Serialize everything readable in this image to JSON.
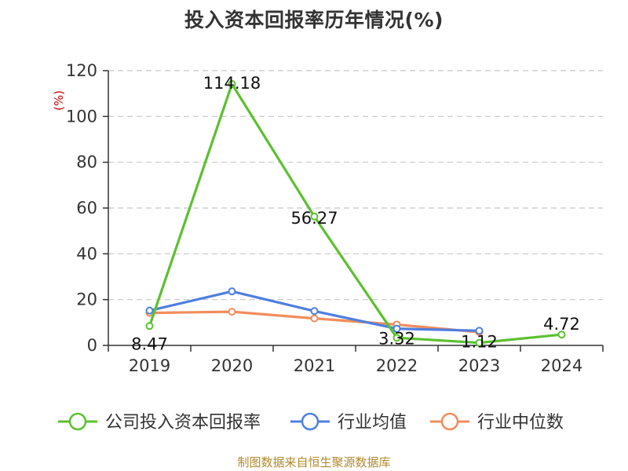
{
  "title": "投入资本回报率历年情况(%)",
  "source": "制图数据来自恒生聚源数据库",
  "chart_data": {
    "type": "line",
    "title": "投入资本回报率历年情况(%)",
    "ylabel": "(%)",
    "xlabel": "",
    "categories": [
      "2019",
      "2020",
      "2021",
      "2022",
      "2023",
      "2024"
    ],
    "ylim": [
      0,
      120
    ],
    "yticks": [
      0,
      20,
      40,
      60,
      80,
      100,
      120
    ],
    "grid": true,
    "legend_position": "bottom",
    "series": [
      {
        "name": "公司投入资本回报率",
        "color": "#5bc12f",
        "values": [
          8.47,
          114.18,
          56.27,
          3.32,
          1.12,
          4.72
        ],
        "labels": [
          "8.47",
          "114.18",
          "56.27",
          "3.32",
          "1.12",
          "4.72"
        ]
      },
      {
        "name": "行业均值",
        "color": "#4e7fe0",
        "values": [
          15.2,
          23.6,
          15.0,
          7.3,
          6.4,
          null
        ]
      },
      {
        "name": "行业中位数",
        "color": "#f28c5c",
        "values": [
          14.2,
          14.7,
          11.8,
          9.1,
          5.8,
          null
        ]
      }
    ]
  }
}
